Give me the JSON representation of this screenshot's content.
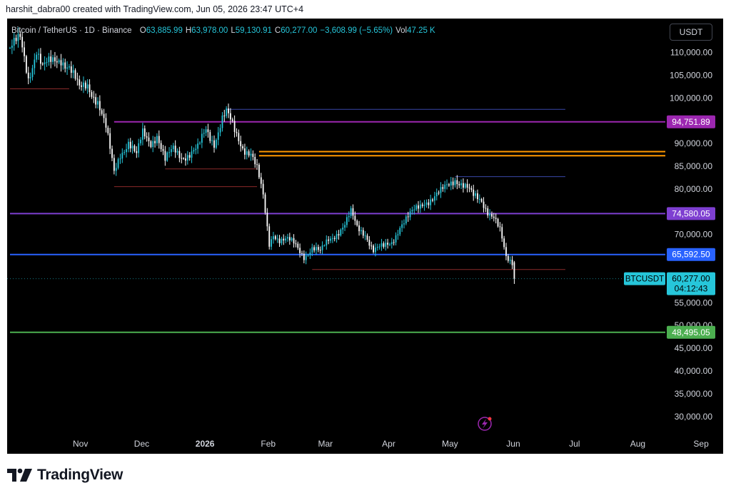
{
  "header": {
    "attribution": "harshit_dabra00 created with TradingView.com, Jun 05, 2026 23:47 UTC+4"
  },
  "legend": {
    "symbol": "Bitcoin / TetherUS · 1D · Binance",
    "open_label": "O",
    "open": "63,885.99",
    "high_label": "H",
    "high": "63,978.00",
    "low_label": "L",
    "low": "59,130.91",
    "close_label": "C",
    "close": "60,277.00",
    "change": "−3,608.99 (−5.65%)",
    "vol_label": "Vol",
    "vol": "47.25 K"
  },
  "currency_button": "USDT",
  "footer": {
    "brand": "TradingView"
  },
  "colors": {
    "background": "#000000",
    "up": "#26c6da",
    "down": "#ffffff",
    "axis_text": "#d1d4dc",
    "brand": "#131722"
  },
  "chart_data": {
    "type": "candlestick",
    "symbol": "BTCUSDT",
    "timeframe": "1D",
    "ylim": [
      25000,
      114000
    ],
    "y_ticks": [
      30000,
      35000,
      40000,
      45000,
      50000,
      55000,
      70000,
      80000,
      85000,
      90000,
      100000,
      105000,
      110000
    ],
    "y_tick_labels": [
      "30,000.00",
      "35,000.00",
      "40,000.00",
      "45,000.00",
      "50,000.00",
      "55,000.00",
      "70,000.00",
      "80,000.00",
      "85,000.00",
      "90,000.00",
      "100,000.00",
      "105,000.00",
      "110,000.00"
    ],
    "x_tick_labels": [
      {
        "label": "Nov",
        "date": "2025-11-01"
      },
      {
        "label": "Dec",
        "date": "2025-12-01"
      },
      {
        "label": "2026",
        "date": "2026-01-01"
      },
      {
        "label": "Feb",
        "date": "2026-02-01"
      },
      {
        "label": "Mar",
        "date": "2026-03-01"
      },
      {
        "label": "Apr",
        "date": "2026-04-01"
      },
      {
        "label": "May",
        "date": "2026-05-01"
      },
      {
        "label": "Jun",
        "date": "2026-06-01"
      },
      {
        "label": "Jul",
        "date": "2026-07-01"
      },
      {
        "label": "Aug",
        "date": "2026-08-01"
      },
      {
        "label": "Sep",
        "date": "2026-09-01"
      }
    ],
    "close_path": [
      [
        "2025-10-01",
        111000
      ],
      [
        "2025-10-06",
        112500
      ],
      [
        "2025-10-10",
        104500
      ],
      [
        "2025-10-14",
        111000
      ],
      [
        "2025-10-17",
        106500
      ],
      [
        "2025-10-21",
        107500
      ],
      [
        "2025-10-26",
        109000
      ],
      [
        "2025-10-30",
        107000
      ],
      [
        "2025-11-04",
        101500
      ],
      [
        "2025-11-08",
        103000
      ],
      [
        "2025-11-13",
        99500
      ],
      [
        "2025-11-17",
        93000
      ],
      [
        "2025-11-21",
        83500
      ],
      [
        "2025-11-24",
        88000
      ],
      [
        "2025-11-28",
        90500
      ],
      [
        "2025-12-02",
        87000
      ],
      [
        "2025-12-05",
        92000
      ],
      [
        "2025-12-09",
        90500
      ],
      [
        "2025-12-12",
        92200
      ],
      [
        "2025-12-16",
        86000
      ],
      [
        "2025-12-20",
        88500
      ],
      [
        "2025-12-24",
        87500
      ],
      [
        "2025-12-28",
        87800
      ],
      [
        "2026-01-01",
        88500
      ],
      [
        "2026-01-05",
        93000
      ],
      [
        "2026-01-09",
        90500
      ],
      [
        "2026-01-13",
        95500
      ],
      [
        "2026-01-15",
        96500
      ],
      [
        "2026-01-19",
        92500
      ],
      [
        "2026-01-23",
        89500
      ],
      [
        "2026-01-27",
        88000
      ],
      [
        "2026-01-30",
        84000
      ],
      [
        "2026-02-02",
        78000
      ],
      [
        "2026-02-05",
        68000
      ],
      [
        "2026-02-07",
        70500
      ],
      [
        "2026-02-10",
        69000
      ],
      [
        "2026-02-14",
        68500
      ],
      [
        "2026-02-18",
        67500
      ],
      [
        "2026-02-22",
        65500
      ],
      [
        "2026-02-26",
        67000
      ],
      [
        "2026-03-02",
        65800
      ],
      [
        "2026-03-06",
        69000
      ],
      [
        "2026-03-10",
        70500
      ],
      [
        "2026-03-14",
        72000
      ],
      [
        "2026-03-17",
        74500
      ],
      [
        "2026-03-20",
        71500
      ],
      [
        "2026-03-24",
        70500
      ],
      [
        "2026-03-28",
        66500
      ],
      [
        "2026-04-02",
        67000
      ],
      [
        "2026-04-06",
        68500
      ],
      [
        "2026-04-10",
        72000
      ],
      [
        "2026-04-14",
        73500
      ],
      [
        "2026-04-18",
        75500
      ],
      [
        "2026-04-22",
        77500
      ],
      [
        "2026-04-26",
        78000
      ],
      [
        "2026-04-30",
        79000
      ],
      [
        "2026-05-04",
        81000
      ],
      [
        "2026-05-07",
        82500
      ],
      [
        "2026-05-10",
        81500
      ],
      [
        "2026-05-13",
        80000
      ],
      [
        "2026-05-16",
        78000
      ],
      [
        "2026-05-20",
        77500
      ],
      [
        "2026-05-23",
        75500
      ],
      [
        "2026-05-26",
        74000
      ],
      [
        "2026-05-29",
        70500
      ],
      [
        "2026-06-01",
        64500
      ],
      [
        "2026-06-04",
        63900
      ],
      [
        "2026-06-05",
        60277
      ]
    ],
    "lines": [
      {
        "label": "94,751.89",
        "value": 94751.89,
        "color": "#9c27b0",
        "from": "2025-11-21",
        "to": null
      },
      {
        "label": "74,580.05",
        "value": 74580.05,
        "color": "#7e3fd1",
        "from": "2025-10-01",
        "to": null
      },
      {
        "label": "65,592.50",
        "value": 65592.5,
        "color": "#2962ff",
        "from": "2025-10-01",
        "to": null
      },
      {
        "label": "48,495.05",
        "value": 48495.05,
        "color": "#4caf50",
        "from": "2025-10-01",
        "to": null
      },
      {
        "value": 88200,
        "color": "#ff9800",
        "from": "2026-01-31",
        "to": null
      },
      {
        "value": 87300,
        "color": "#ff9800",
        "from": "2026-01-31",
        "to": null
      },
      {
        "value": 97500,
        "color": "#3947a8",
        "from": "2026-01-15",
        "to": "2026-06-30"
      },
      {
        "value": 82700,
        "color": "#3947a8",
        "from": "2026-05-07",
        "to": "2026-06-30"
      },
      {
        "value": 62300,
        "color": "#8b2a2a",
        "from": "2026-02-26",
        "to": "2026-06-30"
      },
      {
        "value": 102000,
        "color": "#8b2a2a",
        "from": "2025-10-01",
        "to": "2025-10-30"
      },
      {
        "value": 84400,
        "color": "#8b2a2a",
        "from": "2025-12-16",
        "to": "2026-01-30"
      },
      {
        "value": 80500,
        "color": "#8b2a2a",
        "from": "2025-11-21",
        "to": "2026-01-30"
      }
    ],
    "last_price": {
      "symbol_label": "BTCUSDT",
      "price_label": "60,277.00",
      "countdown": "04:12:43",
      "value": 60277
    }
  }
}
